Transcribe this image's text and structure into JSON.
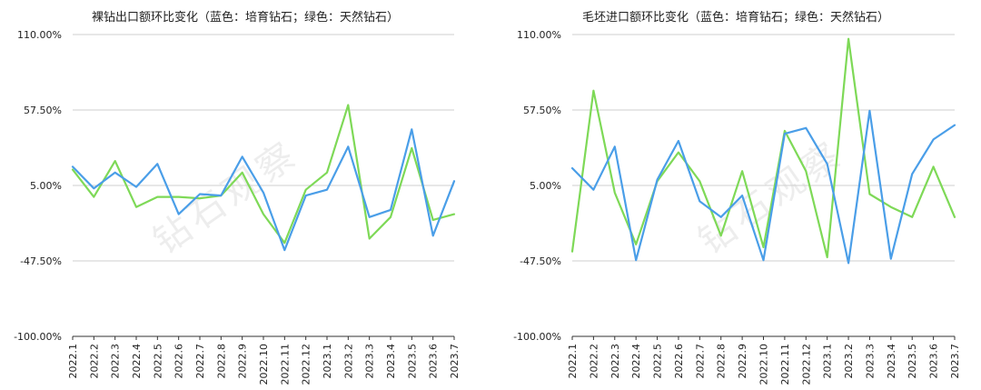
{
  "chart_data": [
    {
      "type": "line",
      "title": "裸钻出口额环比变化（蓝色：培育钻石；绿色：天然钻石）",
      "watermark": "钻石观察",
      "categories": [
        "2022.1",
        "2022.2",
        "2022.3",
        "2022.4",
        "2022.5",
        "2022.6",
        "2022.7",
        "2022.8",
        "2022.9",
        "2022.10",
        "2022.11",
        "2022.12",
        "2023.1",
        "2023.2",
        "2023.3",
        "2023.4",
        "2023.5",
        "2023.6",
        "2023.7"
      ],
      "yticks": [
        "110.00%",
        "57.50%",
        "5.00%",
        "-47.50%",
        "-100.00%"
      ],
      "ylim": [
        -100,
        110
      ],
      "grid": true,
      "series": [
        {
          "color": "#4a9ee8",
          "values": [
            18,
            3,
            14,
            4,
            20,
            -15,
            -1,
            -2,
            25,
            0,
            -40,
            -2,
            2,
            32,
            -17,
            -12,
            44,
            -30,
            8
          ]
        },
        {
          "color": "#7ed957",
          "values": [
            16,
            -3,
            22,
            -10,
            -3,
            -3,
            -4,
            -2,
            14,
            -15,
            -35,
            2,
            14,
            61,
            -32,
            -17,
            31,
            -19,
            -15
          ]
        }
      ]
    },
    {
      "type": "line",
      "title": "毛坯进口额环比变化（蓝色：培育钻石；绿色：天然钻石）",
      "watermark": "钻石观察",
      "categories": [
        "2022.1",
        "2022.2",
        "2022.3",
        "2022.4",
        "2022.5",
        "2022.6",
        "2022.7",
        "2022.8",
        "2022.9",
        "2022.10",
        "2022.11",
        "2022.12",
        "2023.1",
        "2023.2",
        "2023.3",
        "2023.4",
        "2023.5",
        "2023.6",
        "2023.7"
      ],
      "yticks": [
        "110.00%",
        "57.50%",
        "5.00%",
        "-47.50%",
        "-100.00%"
      ],
      "ylim": [
        -100,
        110
      ],
      "grid": true,
      "series": [
        {
          "color": "#4a9ee8",
          "values": [
            17,
            2,
            32,
            -47,
            9,
            36,
            -6,
            -17,
            -2,
            -47,
            41,
            45,
            20,
            -49,
            57,
            -46,
            13,
            37,
            47
          ]
        },
        {
          "color": "#7ed957",
          "values": [
            -41,
            71,
            0,
            -36,
            8,
            28,
            8,
            -30,
            15,
            -38,
            43,
            15,
            -45,
            107,
            -1,
            -10,
            -17,
            18,
            -17
          ]
        }
      ]
    }
  ]
}
